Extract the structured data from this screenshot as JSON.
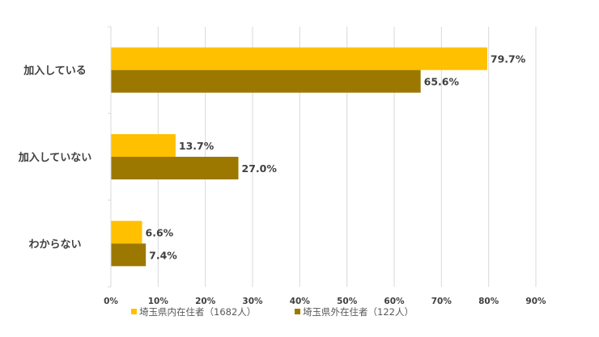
{
  "chart_data": {
    "type": "bar",
    "orientation": "horizontal",
    "categories": [
      "加入している",
      "加入していない",
      "わからない"
    ],
    "series": [
      {
        "name": "埼玉県内在住者（1682人）",
        "color": "#FFC000",
        "values": [
          79.7,
          13.7,
          6.6
        ],
        "labels": [
          "79.7%",
          "13.7%",
          "6.6%"
        ]
      },
      {
        "name": "埼玉県外在住者（122人）",
        "color": "#9C7800",
        "values": [
          65.6,
          27.0,
          7.4
        ],
        "labels": [
          "65.6%",
          "27.0%",
          "7.4%"
        ]
      }
    ],
    "xlim": [
      0,
      90
    ],
    "xticks": [
      "0%",
      "10%",
      "20%",
      "30%",
      "40%",
      "50%",
      "60%",
      "70%",
      "80%",
      "90%"
    ],
    "grid": true,
    "legend_position": "bottom"
  }
}
